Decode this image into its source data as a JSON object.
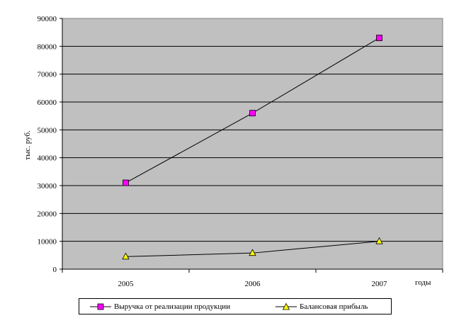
{
  "chart_data": {
    "type": "line",
    "categories": [
      "2005",
      "2006",
      "2007"
    ],
    "ylim": [
      0,
      90000
    ],
    "yticks": [
      0,
      10000,
      20000,
      30000,
      40000,
      50000,
      60000,
      70000,
      80000,
      90000
    ],
    "ylabel": "тыс. руб.",
    "xlabel": "годы",
    "grid": true,
    "legend_position": "bottom",
    "plot_background": "#c0c0c0",
    "series": [
      {
        "name": "Выручка от реализации продукции",
        "values": [
          31000,
          56000,
          83000
        ],
        "marker": "square",
        "marker_color": "#ff00ff"
      },
      {
        "name": "Балансовая прибыль",
        "values": [
          4500,
          5800,
          10000
        ],
        "marker": "triangle",
        "marker_color": "#ffff00"
      }
    ]
  }
}
